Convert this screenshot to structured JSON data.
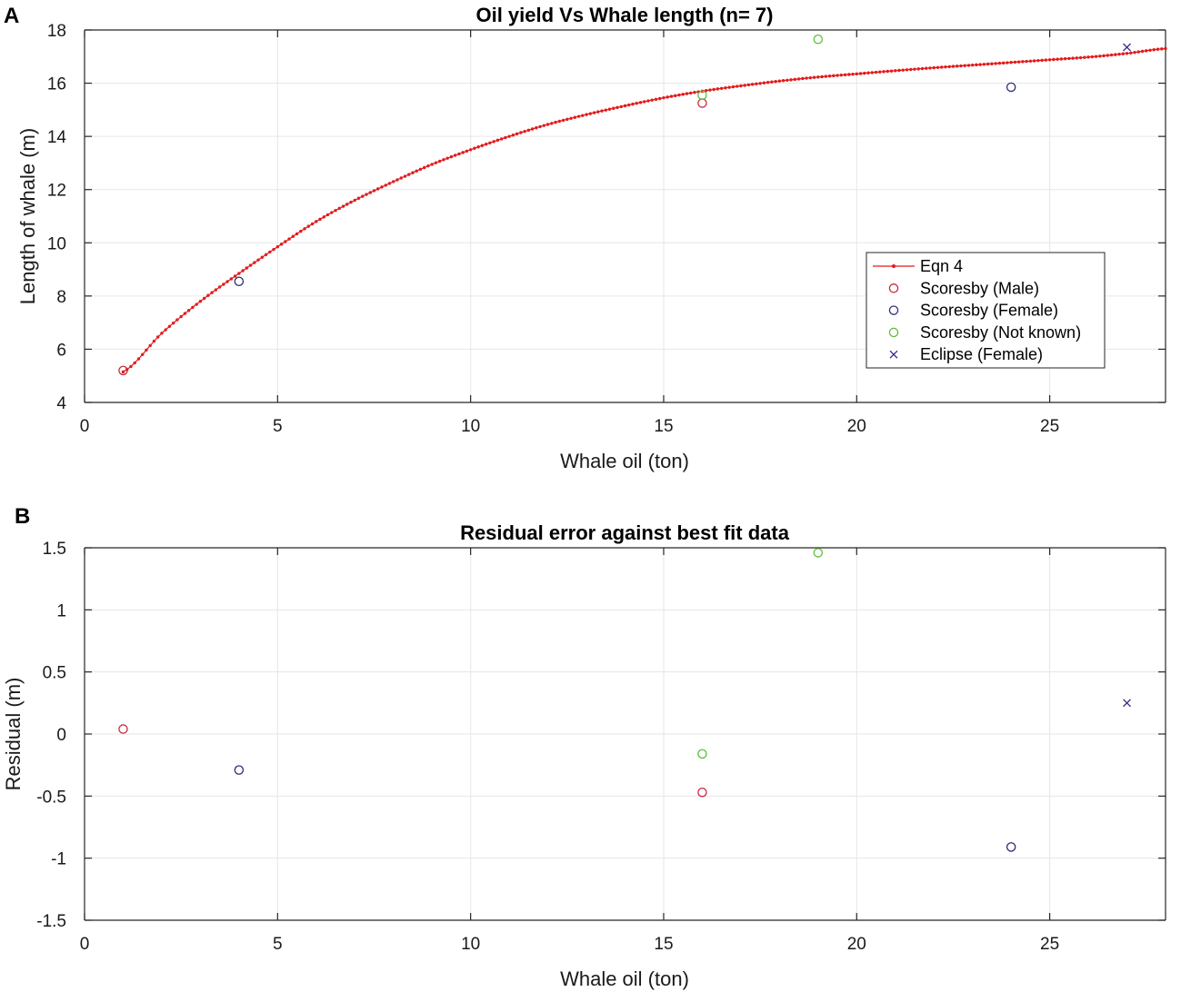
{
  "figure": {
    "panels": [
      "A",
      "B"
    ]
  },
  "chart_data": [
    {
      "id": "A",
      "type": "scatter",
      "title": "Oil yield Vs Whale length (n= 7)",
      "xlabel": "Whale oil (ton)",
      "ylabel": "Length of whale (m)",
      "xlim": [
        0,
        28
      ],
      "ylim": [
        4,
        18
      ],
      "xticks": [
        0,
        5,
        10,
        15,
        20,
        25
      ],
      "yticks": [
        4,
        6,
        8,
        10,
        12,
        14,
        16,
        18
      ],
      "grid": true,
      "legend_position": "right",
      "series": [
        {
          "name": "Eqn 4",
          "kind": "fitted-curve",
          "marker": "dot-line",
          "color": "#e31a1c",
          "x": [
            1,
            2,
            3,
            4,
            5,
            6,
            7,
            8,
            9,
            10,
            11,
            12,
            13,
            14,
            15,
            16,
            17,
            18,
            19,
            20,
            21,
            22,
            23,
            24,
            25,
            26,
            27,
            28
          ],
          "y": [
            5.15,
            6.6,
            7.8,
            8.85,
            9.85,
            10.8,
            11.6,
            12.3,
            12.95,
            13.5,
            14.0,
            14.45,
            14.82,
            15.15,
            15.45,
            15.7,
            15.9,
            16.08,
            16.23,
            16.35,
            16.47,
            16.58,
            16.68,
            16.78,
            16.88,
            16.98,
            17.12,
            17.3
          ]
        },
        {
          "name": "Scoresby (Male)",
          "marker": "circle",
          "color": "#c8283c",
          "x": [
            1,
            16
          ],
          "y": [
            5.2,
            15.25
          ]
        },
        {
          "name": "Scoresby (Female)",
          "marker": "circle",
          "color": "#2c2c7c",
          "x": [
            4,
            24
          ],
          "y": [
            8.55,
            15.85
          ]
        },
        {
          "name": "Scoresby (Not known)",
          "marker": "circle",
          "color": "#5cbf3c",
          "x": [
            16,
            19
          ],
          "y": [
            15.55,
            17.65
          ]
        },
        {
          "name": "Eclipse  (Female)",
          "marker": "x",
          "color": "#2c2c8c",
          "x": [
            27
          ],
          "y": [
            17.35
          ]
        }
      ]
    },
    {
      "id": "B",
      "type": "scatter",
      "title": "Residual error against best fit data",
      "xlabel": "Whale oil (ton)",
      "ylabel": "Residual (m)",
      "xlim": [
        0,
        28
      ],
      "ylim": [
        -1.5,
        1.5
      ],
      "xticks": [
        0,
        5,
        10,
        15,
        20,
        25
      ],
      "yticks": [
        -1.5,
        -1,
        -0.5,
        0,
        0.5,
        1,
        1.5
      ],
      "grid": true,
      "series": [
        {
          "marker": "circle",
          "color": "#c8283c",
          "x": [
            1,
            16
          ],
          "y": [
            0.04,
            -0.47
          ]
        },
        {
          "marker": "circle",
          "color": "#2c2c7c",
          "x": [
            4,
            24
          ],
          "y": [
            -0.29,
            -0.91
          ]
        },
        {
          "marker": "circle",
          "color": "#5cbf3c",
          "x": [
            16,
            19
          ],
          "y": [
            -0.16,
            1.46
          ]
        },
        {
          "marker": "x",
          "color": "#2c2c8c",
          "x": [
            27
          ],
          "y": [
            0.25
          ]
        }
      ]
    }
  ]
}
